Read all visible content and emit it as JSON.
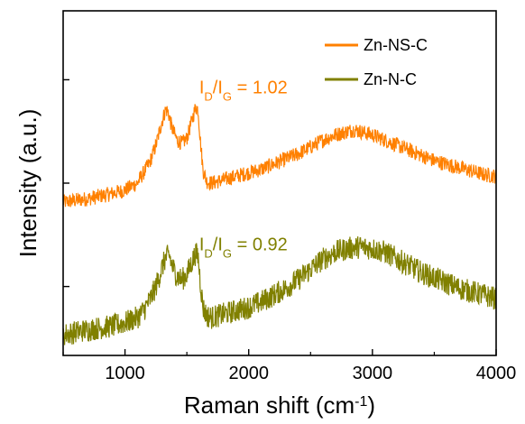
{
  "chart_data": {
    "type": "line",
    "xlabel": "Raman shift (cm",
    "xlabel_sup": "-1",
    "xlabel_tail": ")",
    "ylabel": "Intensity (a.u.)",
    "xlim": [
      500,
      4000
    ],
    "ylim": [
      0,
      1
    ],
    "x_ticks": [
      "1000",
      "2000",
      "3000",
      "4000"
    ],
    "x_tick_values": [
      1000,
      2000,
      3000,
      4000
    ],
    "y_ticks_labeled": false,
    "grid": false,
    "legend_position": "top-right",
    "series": [
      {
        "name": "Zn-NS-C",
        "color": "#ff8000",
        "x": [
          500,
          700,
          900,
          1000,
          1100,
          1150,
          1200,
          1250,
          1300,
          1330,
          1350,
          1380,
          1420,
          1460,
          1500,
          1540,
          1570,
          1590,
          1610,
          1630,
          1660,
          1700,
          1750,
          1800,
          1900,
          2000,
          2100,
          2200,
          2300,
          2400,
          2500,
          2600,
          2700,
          2800,
          2850,
          2900,
          3000,
          3100,
          3200,
          3300,
          3400,
          3500,
          3600,
          3700,
          3800,
          3900,
          4000
        ],
        "y": [
          0.445,
          0.455,
          0.47,
          0.48,
          0.5,
          0.53,
          0.56,
          0.61,
          0.68,
          0.715,
          0.705,
          0.66,
          0.625,
          0.615,
          0.63,
          0.68,
          0.72,
          0.715,
          0.62,
          0.54,
          0.505,
          0.5,
          0.505,
          0.51,
          0.52,
          0.53,
          0.54,
          0.555,
          0.57,
          0.585,
          0.605,
          0.625,
          0.64,
          0.65,
          0.655,
          0.65,
          0.64,
          0.625,
          0.61,
          0.595,
          0.58,
          0.565,
          0.555,
          0.545,
          0.535,
          0.525,
          0.52
        ]
      },
      {
        "name": "Zn-N-C",
        "color": "#808000",
        "x": [
          500,
          700,
          900,
          1000,
          1100,
          1150,
          1200,
          1250,
          1300,
          1330,
          1360,
          1380,
          1420,
          1460,
          1500,
          1540,
          1570,
          1590,
          1610,
          1630,
          1660,
          1700,
          1750,
          1800,
          1900,
          2000,
          2100,
          2200,
          2300,
          2400,
          2500,
          2600,
          2700,
          2800,
          2900,
          3000,
          3100,
          3200,
          3300,
          3400,
          3500,
          3600,
          3700,
          3800,
          3900,
          4000
        ],
        "y": [
          0.06,
          0.075,
          0.085,
          0.095,
          0.11,
          0.13,
          0.16,
          0.2,
          0.255,
          0.285,
          0.29,
          0.26,
          0.23,
          0.22,
          0.235,
          0.27,
          0.295,
          0.29,
          0.21,
          0.14,
          0.115,
          0.11,
          0.115,
          0.12,
          0.13,
          0.14,
          0.155,
          0.175,
          0.195,
          0.22,
          0.25,
          0.28,
          0.3,
          0.31,
          0.315,
          0.31,
          0.3,
          0.28,
          0.26,
          0.24,
          0.225,
          0.21,
          0.195,
          0.185,
          0.175,
          0.165
        ]
      }
    ],
    "annotations": [
      {
        "base": "I",
        "sub1": "D",
        "mid": "/I",
        "sub2": "G",
        "tail": " = 1.02",
        "color": "#ff8000",
        "x": 1600,
        "y": 0.76
      },
      {
        "base": "I",
        "sub1": "D",
        "mid": "/I",
        "sub2": "G",
        "tail": " = 0.92",
        "color": "#808000",
        "x": 1600,
        "y": 0.305
      }
    ]
  }
}
